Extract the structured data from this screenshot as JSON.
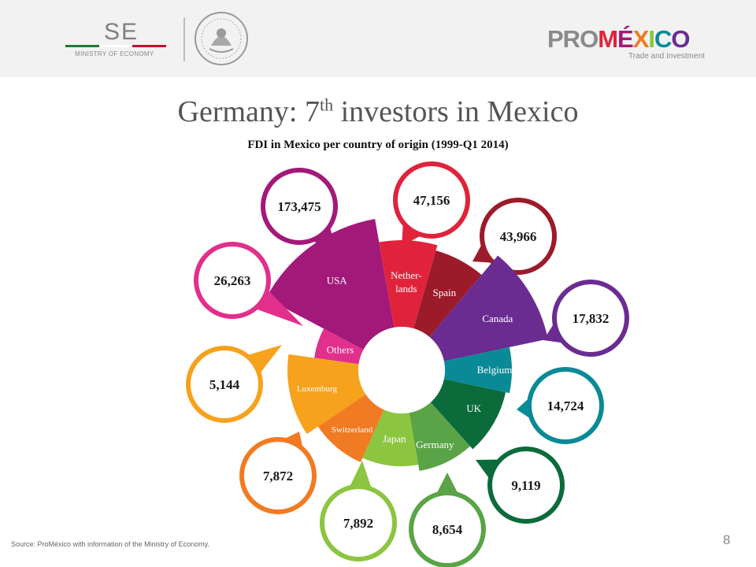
{
  "header": {
    "ministry_abbr": "SE",
    "ministry_name": "MINISTRY OF ECONOMY",
    "brand_pro": "PRO",
    "brand_mexico": "MÉXICO",
    "brand_tagline": "Trade and Investment"
  },
  "slide": {
    "title_main": "Germany: 7",
    "title_sup": "th",
    "title_rest": " investors in Mexico",
    "subtitle": "FDI in Mexico per country of origin (1999-Q1 2014)",
    "source": "Source: ProMéxico with information of the Ministry of Economy.",
    "page_number": "8"
  },
  "chart_data": {
    "type": "pie",
    "title": "FDI in Mexico per country of origin (1999-Q1 2014)",
    "slices": [
      {
        "label": "USA",
        "value": 173475,
        "value_label": "173,475",
        "color": "#a3197a"
      },
      {
        "label": "Nether-\nlands",
        "value": 47156,
        "value_label": "47,156",
        "color": "#e0233b"
      },
      {
        "label": "Spain",
        "value": 43966,
        "value_label": "43,966",
        "color": "#9b1b2a"
      },
      {
        "label": "Canada",
        "value": 17832,
        "value_label": "17,832",
        "color": "#6a2c91"
      },
      {
        "label": "Belgium",
        "value": 14724,
        "value_label": "14,724",
        "color": "#0a8a96"
      },
      {
        "label": "UK",
        "value": 9119,
        "value_label": "9,119",
        "color": "#0b6b3a"
      },
      {
        "label": "Germany",
        "value": 8654,
        "value_label": "8,654",
        "color": "#5aa447"
      },
      {
        "label": "Japan",
        "value": 7892,
        "value_label": "7,892",
        "color": "#8cc540"
      },
      {
        "label": "Switzerland",
        "value": 7872,
        "value_label": "7,872",
        "color": "#f07b22"
      },
      {
        "label": "Luxemburg",
        "value": 5144,
        "value_label": "5,144",
        "color": "#f6a21d"
      },
      {
        "label": "Others",
        "value": 26263,
        "value_label": "26,263",
        "color": "#e12f8b"
      }
    ]
  }
}
